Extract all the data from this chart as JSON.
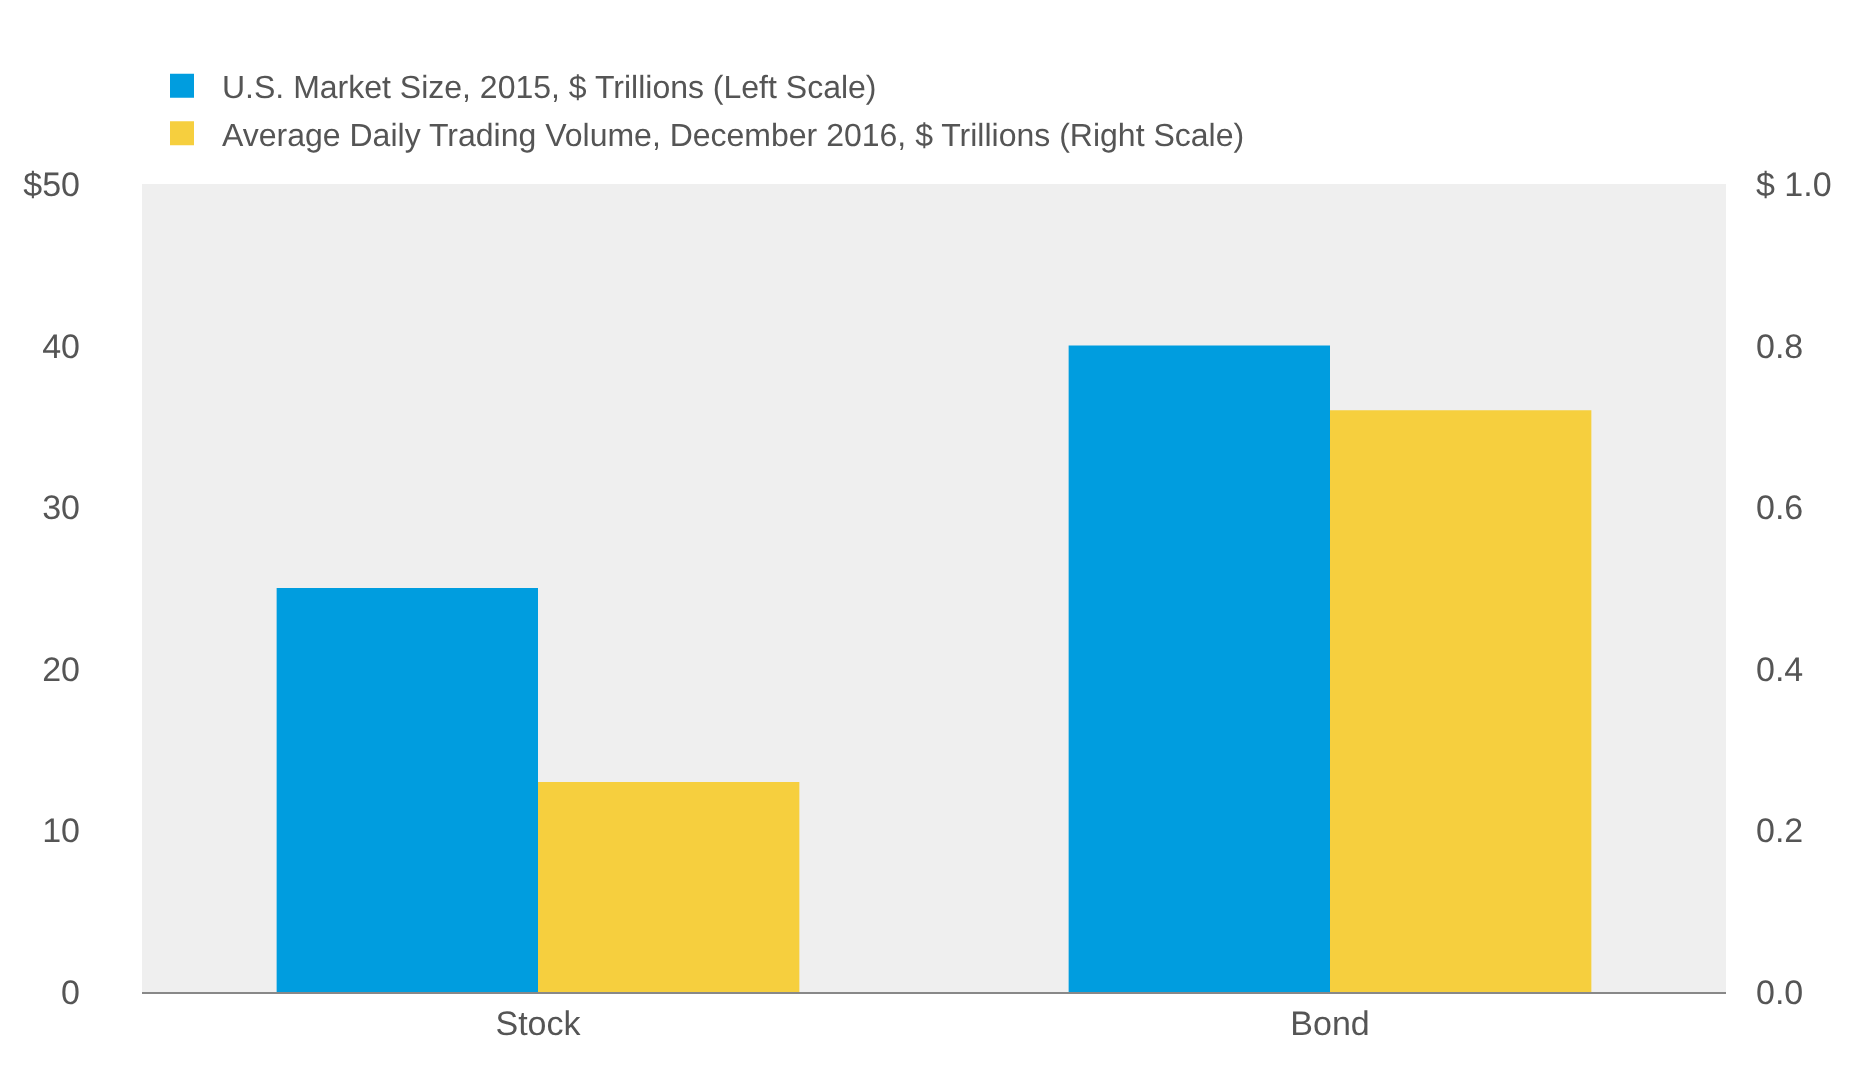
{
  "chart_data": {
    "type": "bar",
    "categories": [
      "Stock",
      "Bond"
    ],
    "series": [
      {
        "name": "U.S. Market Size, 2015, $ Trillions (Left Scale)",
        "color": "#009ddf",
        "values": [
          25,
          40
        ]
      },
      {
        "name": "Average Daily Trading Volume, December 2016, $ Trillions (Right Scale)",
        "color": "#f6cf3e",
        "values": [
          0.26,
          0.72
        ],
        "axis": "y2"
      }
    ],
    "ylim": [
      0,
      50
    ],
    "yticks": [
      {
        "value": 0,
        "label": "0"
      },
      10,
      20,
      30,
      40,
      {
        "value": 50,
        "label": "$50"
      }
    ],
    "y2lim": [
      0,
      1
    ],
    "y2ticks": [
      {
        "value": 0,
        "label": "0.0"
      },
      {
        "value": 0.2,
        "label": "0.2"
      },
      {
        "value": 0.4,
        "label": "0.4"
      },
      {
        "value": 0.6,
        "label": "0.6"
      },
      {
        "value": 0.8,
        "label": "0.8"
      },
      {
        "value": 1,
        "label": "$ 1.0"
      }
    ],
    "grid": false,
    "legend": "top left"
  }
}
